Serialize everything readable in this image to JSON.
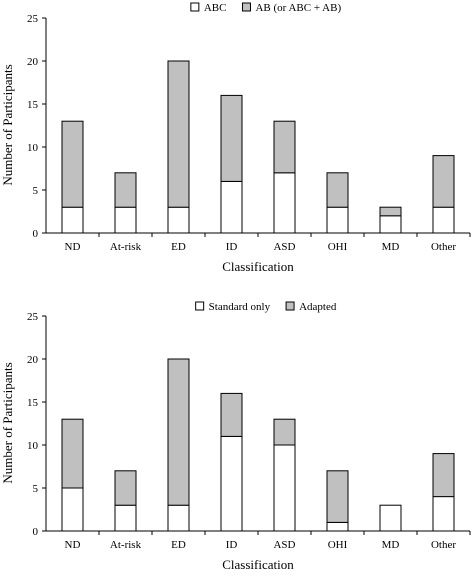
{
  "chart_data": [
    {
      "type": "bar",
      "stacked": true,
      "categories": [
        "ND",
        "At-risk",
        "ED",
        "ID",
        "ASD",
        "OHI",
        "MD",
        "Other"
      ],
      "series": [
        {
          "name": "ABC",
          "values": [
            3,
            3,
            3,
            6,
            7,
            3,
            2,
            3
          ],
          "color": "#ffffff"
        },
        {
          "name": "AB (or ABC + AB)",
          "values": [
            10,
            4,
            17,
            10,
            6,
            4,
            1,
            6
          ],
          "color": "#c0c0c0"
        }
      ],
      "xlabel": "Classification",
      "ylabel": "Number of Participants",
      "ylim": [
        0,
        25
      ],
      "yticks": [
        0,
        5,
        10,
        15,
        20,
        25
      ],
      "legend_position": "top-center",
      "grid": false
    },
    {
      "type": "bar",
      "stacked": true,
      "categories": [
        "ND",
        "At-risk",
        "ED",
        "ID",
        "ASD",
        "OHI",
        "MD",
        "Other"
      ],
      "series": [
        {
          "name": "Standard only",
          "values": [
            5,
            3,
            3,
            11,
            10,
            1,
            3,
            4
          ],
          "color": "#ffffff"
        },
        {
          "name": "Adapted",
          "values": [
            8,
            4,
            17,
            5,
            3,
            6,
            0,
            5
          ],
          "color": "#c0c0c0"
        }
      ],
      "xlabel": "Classification",
      "ylabel": "Number of Participants",
      "ylim": [
        0,
        25
      ],
      "yticks": [
        0,
        5,
        10,
        15,
        20,
        25
      ],
      "legend_position": "top-center",
      "grid": false
    }
  ]
}
